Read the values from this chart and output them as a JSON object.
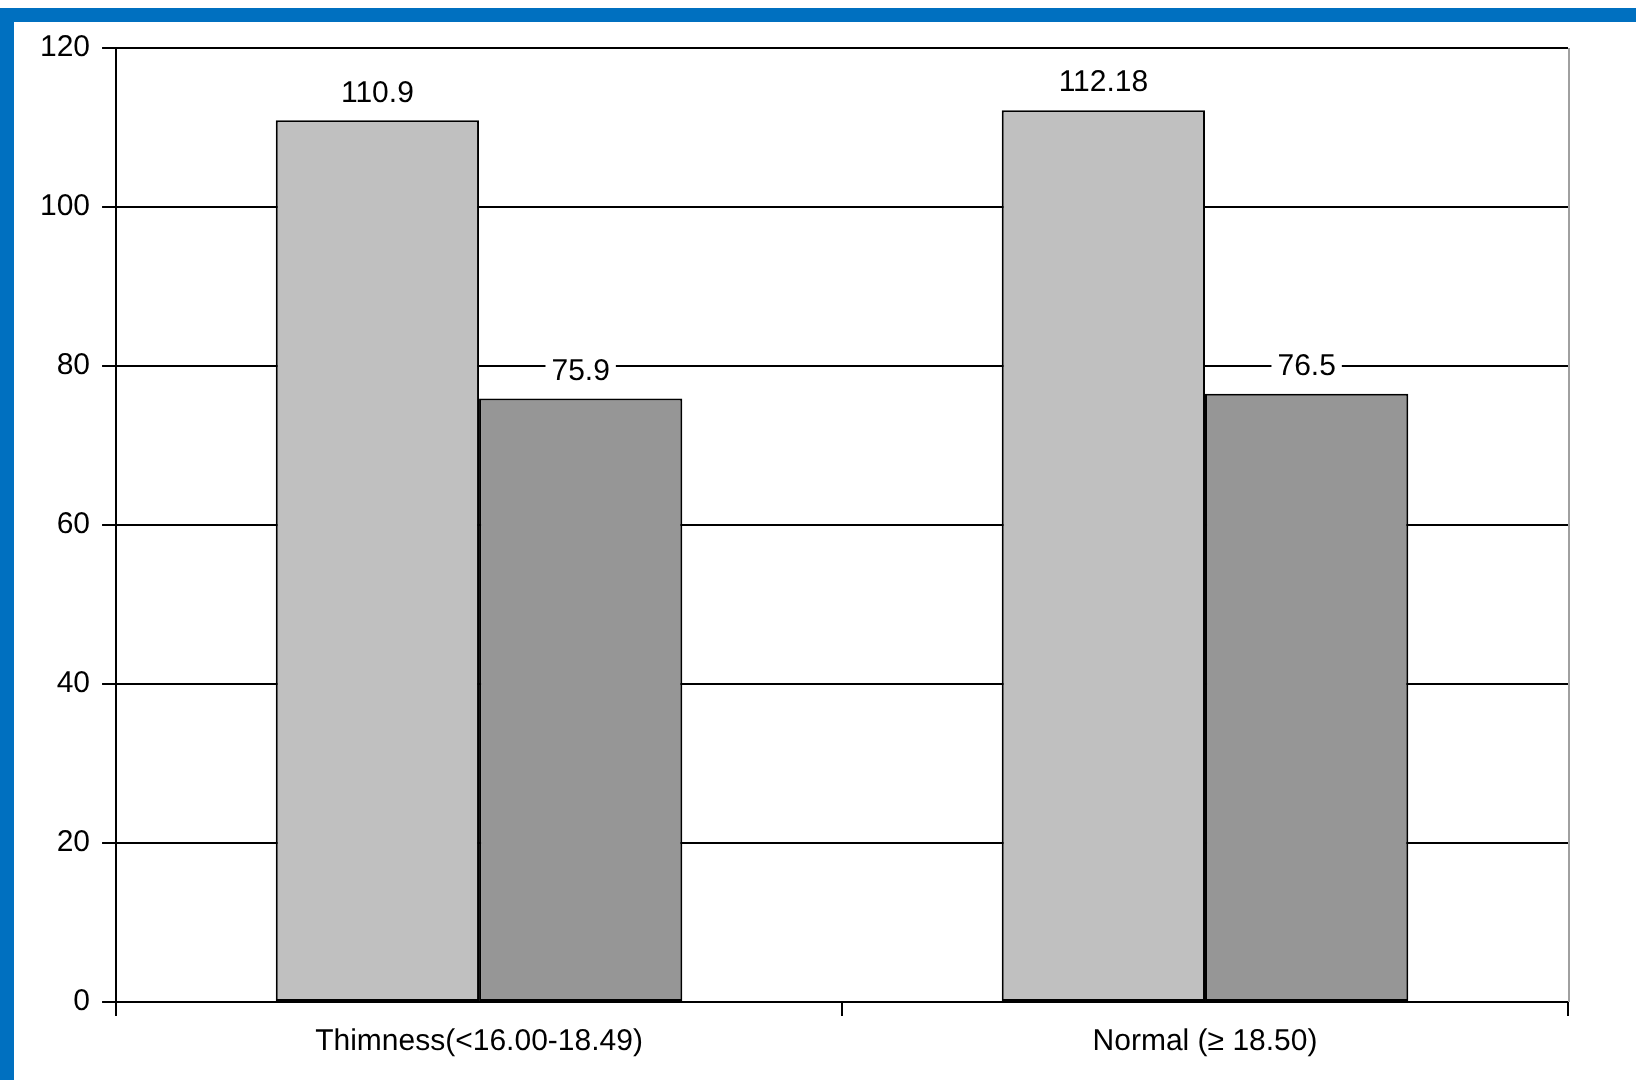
{
  "chart_data": {
    "type": "bar",
    "categories": [
      "Thimness(<16.00-18.49)",
      "Normal (≥ 18.50)"
    ],
    "series": [
      {
        "color": "#c0c0c0",
        "values": [
          110.9,
          112.18
        ]
      },
      {
        "color": "#969696",
        "values": [
          75.9,
          76.5
        ]
      }
    ],
    "ylim": [
      0,
      120
    ],
    "yticks": [
      0,
      20,
      40,
      60,
      80,
      100,
      120
    ],
    "grid": "y",
    "data_labels": true
  }
}
